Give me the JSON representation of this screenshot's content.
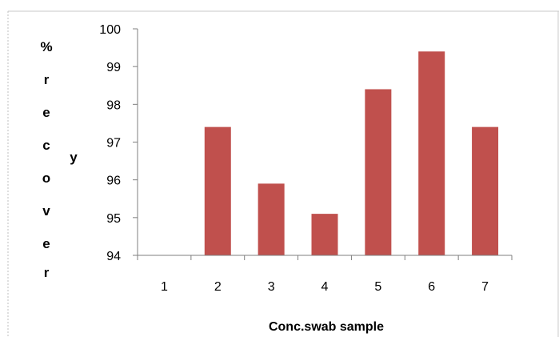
{
  "chart_data": {
    "type": "bar",
    "categories": [
      "1",
      "2",
      "3",
      "4",
      "5",
      "6",
      "7"
    ],
    "values": [
      94,
      97.4,
      95.9,
      95.1,
      98.4,
      99.4,
      97.4
    ],
    "ylim": [
      94,
      100
    ],
    "yticks": [
      "94",
      "95",
      "96",
      "97",
      "98",
      "99",
      "100"
    ],
    "ylabel_chars": [
      "%",
      "r",
      "e",
      "c",
      "o",
      "v",
      "e",
      "r"
    ],
    "ylabel_extra": "y",
    "xlabel": "Conc.swab sample",
    "bar_color": "#C0504D",
    "grid": false,
    "legend": "none"
  }
}
